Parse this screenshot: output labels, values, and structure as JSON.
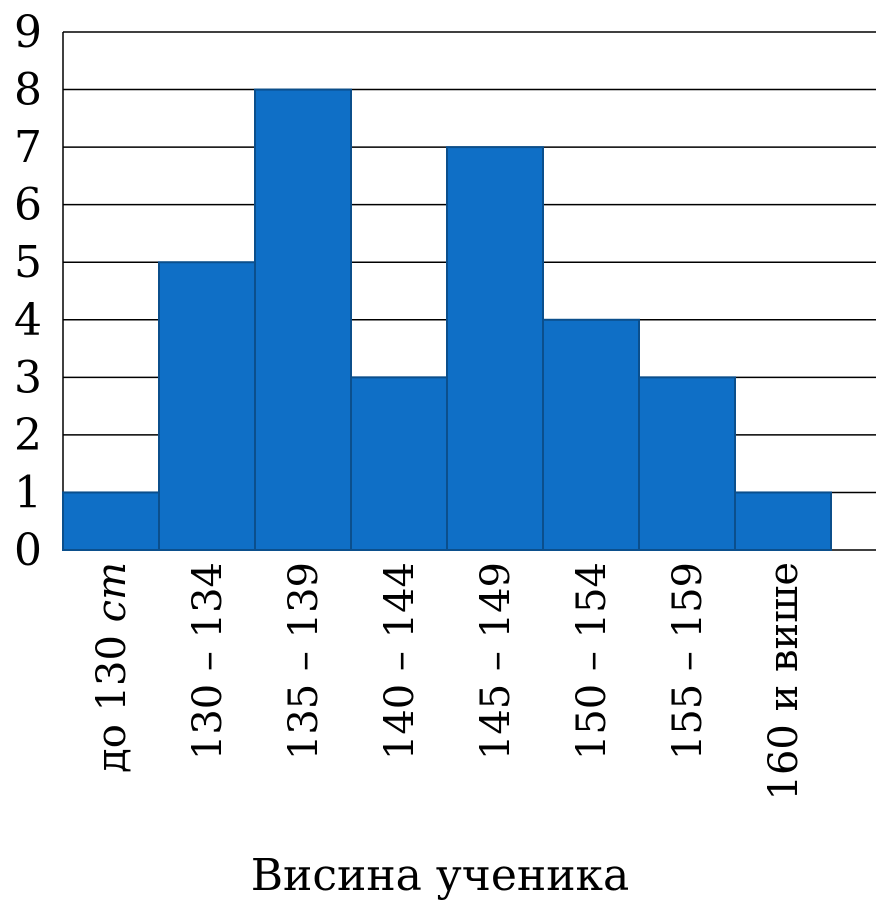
{
  "chart_data": {
    "type": "bar",
    "categories": [
      {
        "label": "до 130",
        "unit": "cm"
      },
      {
        "label": "130 – 134"
      },
      {
        "label": "135 – 139"
      },
      {
        "label": "140 – 144"
      },
      {
        "label": "145 – 149"
      },
      {
        "label": "150 – 154"
      },
      {
        "label": "155 – 159"
      },
      {
        "label": "160 и више"
      }
    ],
    "values": [
      1,
      5,
      8,
      3,
      7,
      4,
      3,
      1
    ],
    "xlabel": "Висина ученика",
    "ylabel": "",
    "ylim": [
      0,
      9
    ],
    "yticks": [
      0,
      1,
      2,
      3,
      4,
      5,
      6,
      7,
      8,
      9
    ],
    "grid": true,
    "colors": {
      "bar_fill": "#0F6FC6",
      "bar_stroke": "#0B4F8C",
      "grid": "#000000"
    }
  }
}
